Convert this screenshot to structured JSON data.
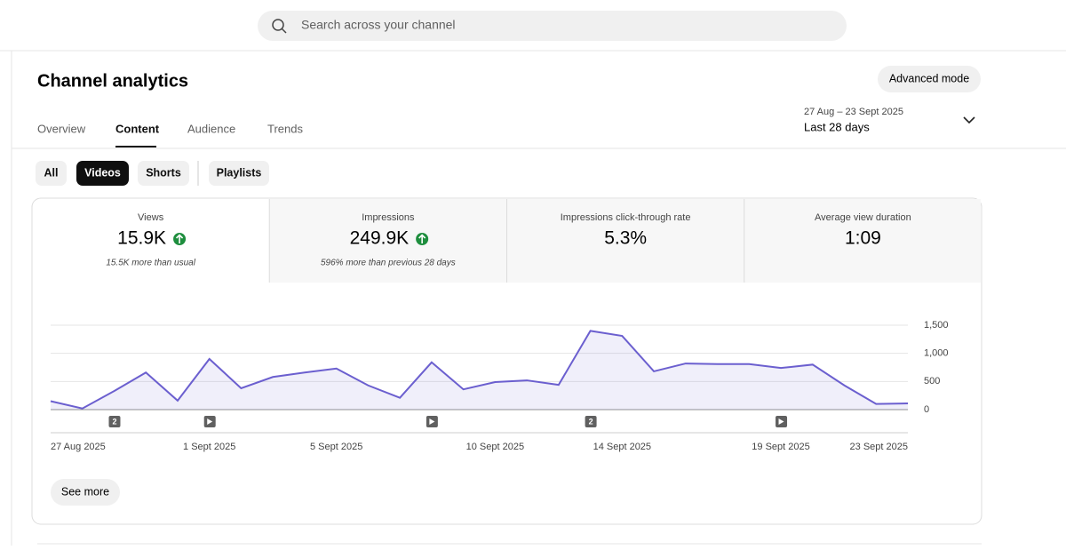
{
  "search": {
    "placeholder": "Search across your channel"
  },
  "header": {
    "title": "Channel analytics",
    "advanced_button": "Advanced mode"
  },
  "tabs": {
    "items": [
      "Overview",
      "Content",
      "Audience",
      "Trends"
    ],
    "selected": 1
  },
  "date_range": {
    "range": "27 Aug – 23 Sept 2025",
    "label": "Last 28 days"
  },
  "filters": {
    "items": [
      "All",
      "Videos",
      "Shorts",
      "Playlists"
    ],
    "selected": 1
  },
  "metrics": [
    {
      "label": "Views",
      "value": "15.9K",
      "note": "15.5K more than usual"
    },
    {
      "label": "Impressions",
      "value": "249.9K",
      "note": "596% more than previous 28 days"
    },
    {
      "label": "Impressions click-through rate",
      "value": "5.3%"
    },
    {
      "label": "Average view duration",
      "value": "1:09"
    }
  ],
  "chart_data": {
    "type": "line",
    "color": "#6b5fcf",
    "categories": [
      "27 Aug 2025",
      null,
      null,
      null,
      null,
      "1 Sept 2025",
      null,
      null,
      null,
      "5 Sept 2025",
      null,
      null,
      null,
      null,
      "10 Sept 2025",
      null,
      null,
      null,
      "14 Sept 2025",
      null,
      null,
      null,
      null,
      "19 Sept 2025",
      null,
      null,
      null,
      "23 Sept 2025"
    ],
    "values": [
      150,
      20,
      330,
      660,
      160,
      900,
      380,
      580,
      660,
      730,
      430,
      210,
      840,
      360,
      490,
      520,
      440,
      1400,
      1310,
      680,
      820,
      810,
      810,
      740,
      800,
      430,
      100,
      110
    ],
    "published_counts": [
      null,
      null,
      2,
      null,
      null,
      1,
      null,
      null,
      null,
      null,
      null,
      null,
      1,
      null,
      null,
      null,
      null,
      2,
      null,
      null,
      null,
      null,
      null,
      1,
      null,
      null,
      null,
      null
    ],
    "ylim": [
      0,
      1500
    ],
    "yticks": [
      0,
      500,
      {
        "value": 1000,
        "label": "1,000"
      },
      {
        "value": 1500,
        "label": "1,500"
      }
    ],
    "grid": true
  },
  "footer": {
    "see_more": "See more"
  }
}
